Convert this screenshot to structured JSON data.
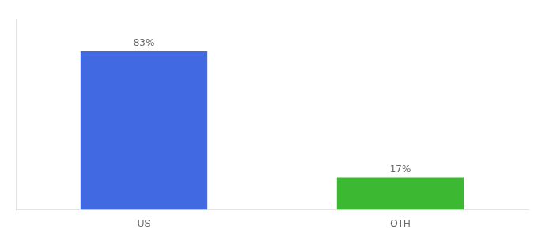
{
  "chart_data": {
    "type": "bar",
    "categories": [
      "US",
      "OTH"
    ],
    "values": [
      83,
      17
    ],
    "value_labels": [
      "83%",
      "17%"
    ],
    "colors": [
      "#4169e1",
      "#3cb832"
    ],
    "ylim": [
      0,
      100
    ],
    "grid": false,
    "tick_labels": "x",
    "data_labels": true
  }
}
